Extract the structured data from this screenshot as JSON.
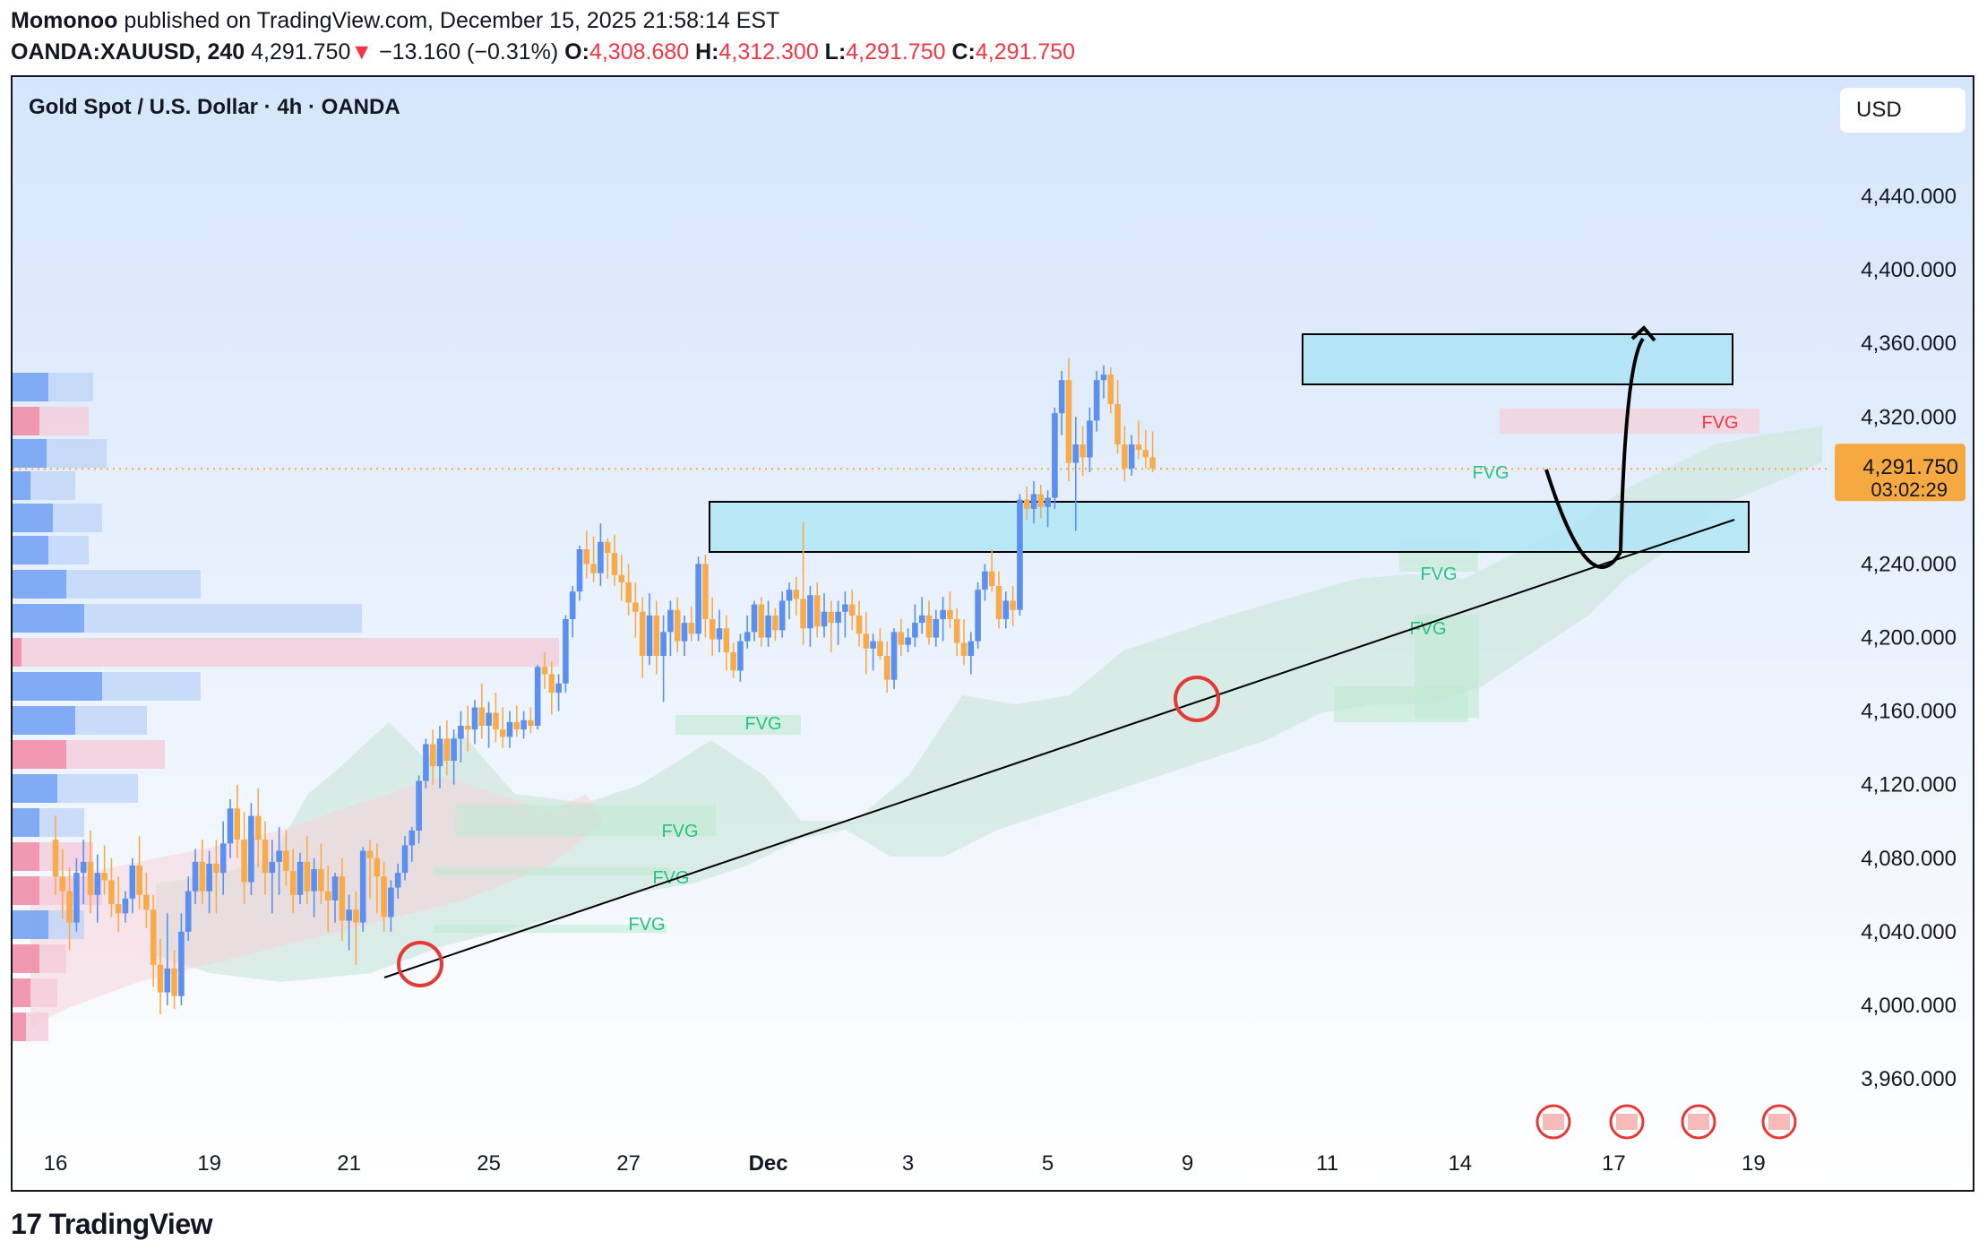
{
  "header": {
    "author": "Momonoo",
    "published_text": "published on TradingView.com, December 15, 2025 21:58:14 EST",
    "symbol": "OANDA:XAUUSD, 240",
    "last": "4,291.750",
    "arrow": "▼",
    "change": "−13.160 (−0.31%)",
    "o_label": "O:",
    "o_value": "4,308.680",
    "h_label": "H:",
    "h_value": "4,312.300",
    "l_label": "L:",
    "l_value": "4,291.750",
    "c_label": "C:",
    "c_value": "4,291.750"
  },
  "chart_title": "Gold Spot / U.S. Dollar · 4h · OANDA",
  "currency": "USD",
  "brand": "TradingView",
  "colors": {
    "up": "#5b8ff0",
    "down": "#f7ab4b",
    "fvg_green": "#26c281",
    "fvg_red": "#f23645",
    "zone": "#b3e5f5",
    "price_tag": "#f7a941"
  },
  "chart_data": {
    "type": "candlestick",
    "symbol": "XAUUSD",
    "timeframe": "4h",
    "ylim": [
      3940,
      4490
    ],
    "y_ticks": [
      "4,440.000",
      "4,400.000",
      "4,360.000",
      "4,320.000",
      "4,280.000",
      "4,240.000",
      "4,200.000",
      "4,160.000",
      "4,120.000",
      "4,080.000",
      "4,040.000",
      "4,000.000",
      "3,960.000"
    ],
    "y_tick_values": [
      4440,
      4400,
      4360,
      4320,
      4280,
      4240,
      4200,
      4160,
      4120,
      4080,
      4040,
      4000,
      3960
    ],
    "x_ticks": [
      "16",
      "19",
      "21",
      "25",
      "27",
      "Dec",
      "3",
      "5",
      "9",
      "11",
      "14",
      "17",
      "19"
    ],
    "x_tick_bar_index": [
      0,
      22,
      42,
      62,
      82,
      102,
      122,
      142,
      162,
      182,
      201,
      223,
      243
    ],
    "current_price": {
      "value": 4291.75,
      "label": "4,291.750",
      "countdown": "03:02:29"
    },
    "candles": [
      [
        4090,
        4103,
        4060,
        4070
      ],
      [
        4070,
        4085,
        4047,
        4062
      ],
      [
        4062,
        4075,
        4030,
        4045
      ],
      [
        4045,
        4080,
        4040,
        4072
      ],
      [
        4072,
        4090,
        4055,
        4078
      ],
      [
        4078,
        4095,
        4050,
        4060
      ],
      [
        4060,
        4082,
        4045,
        4072
      ],
      [
        4072,
        4087,
        4060,
        4068
      ],
      [
        4068,
        4080,
        4048,
        4055
      ],
      [
        4055,
        4070,
        4040,
        4050
      ],
      [
        4050,
        4062,
        4045,
        4058
      ],
      [
        4058,
        4080,
        4050,
        4076
      ],
      [
        4076,
        4092,
        4052,
        4060
      ],
      [
        4060,
        4072,
        4042,
        4052
      ],
      [
        4052,
        4060,
        4010,
        4022
      ],
      [
        4022,
        4036,
        3995,
        4007
      ],
      [
        4007,
        4050,
        4000,
        4020
      ],
      [
        4020,
        4030,
        3998,
        4005
      ],
      [
        4005,
        4050,
        4000,
        4040
      ],
      [
        4040,
        4070,
        4035,
        4062
      ],
      [
        4062,
        4085,
        4055,
        4078
      ],
      [
        4078,
        4090,
        4055,
        4062
      ],
      [
        4062,
        4084,
        4050,
        4077
      ],
      [
        4077,
        4090,
        4050,
        4072
      ],
      [
        4072,
        4100,
        4060,
        4088
      ],
      [
        4088,
        4112,
        4080,
        4107
      ],
      [
        4107,
        4120,
        4080,
        4090
      ],
      [
        4090,
        4105,
        4055,
        4067
      ],
      [
        4067,
        4110,
        4060,
        4103
      ],
      [
        4103,
        4118,
        4075,
        4090
      ],
      [
        4090,
        4100,
        4060,
        4072
      ],
      [
        4072,
        4090,
        4050,
        4078
      ],
      [
        4078,
        4097,
        4060,
        4084
      ],
      [
        4084,
        4095,
        4065,
        4073
      ],
      [
        4073,
        4085,
        4050,
        4060
      ],
      [
        4060,
        4083,
        4055,
        4078
      ],
      [
        4078,
        4092,
        4055,
        4062
      ],
      [
        4062,
        4080,
        4048,
        4074
      ],
      [
        4074,
        4088,
        4055,
        4062
      ],
      [
        4062,
        4076,
        4040,
        4057
      ],
      [
        4057,
        4072,
        4045,
        4070
      ],
      [
        4070,
        4080,
        4035,
        4046
      ],
      [
        4046,
        4060,
        4030,
        4052
      ],
      [
        4052,
        4062,
        4022,
        4045
      ],
      [
        4045,
        4086,
        4040,
        4084
      ],
      [
        4084,
        4090,
        4058,
        4080
      ],
      [
        4080,
        4088,
        4050,
        4070
      ],
      [
        4070,
        4078,
        4040,
        4048
      ],
      [
        4048,
        4068,
        4040,
        4064
      ],
      [
        4064,
        4077,
        4058,
        4072
      ],
      [
        4072,
        4092,
        4068,
        4087
      ],
      [
        4087,
        4097,
        4078,
        4095
      ],
      [
        4095,
        4125,
        4088,
        4122
      ],
      [
        4122,
        4145,
        4118,
        4142
      ],
      [
        4142,
        4150,
        4120,
        4130
      ],
      [
        4130,
        4152,
        4118,
        4145
      ],
      [
        4145,
        4155,
        4125,
        4133
      ],
      [
        4133,
        4150,
        4120,
        4145
      ],
      [
        4145,
        4160,
        4132,
        4152
      ],
      [
        4152,
        4163,
        4138,
        4150
      ],
      [
        4150,
        4166,
        4142,
        4162
      ],
      [
        4162,
        4175,
        4145,
        4152
      ],
      [
        4152,
        4165,
        4140,
        4159
      ],
      [
        4159,
        4170,
        4143,
        4150
      ],
      [
        4150,
        4162,
        4140,
        4146
      ],
      [
        4146,
        4160,
        4140,
        4154
      ],
      [
        4154,
        4163,
        4146,
        4150
      ],
      [
        4150,
        4160,
        4145,
        4155
      ],
      [
        4155,
        4162,
        4148,
        4152
      ],
      [
        4152,
        4185,
        4150,
        4184
      ],
      [
        4184,
        4192,
        4172,
        4180
      ],
      [
        4180,
        4187,
        4158,
        4170
      ],
      [
        4170,
        4180,
        4160,
        4175
      ],
      [
        4175,
        4212,
        4170,
        4210
      ],
      [
        4210,
        4228,
        4200,
        4225
      ],
      [
        4225,
        4250,
        4220,
        4248
      ],
      [
        4248,
        4258,
        4232,
        4240
      ],
      [
        4240,
        4255,
        4230,
        4235
      ],
      [
        4235,
        4262,
        4228,
        4252
      ],
      [
        4252,
        4254,
        4232,
        4246
      ],
      [
        4246,
        4256,
        4228,
        4234
      ],
      [
        4234,
        4245,
        4220,
        4230
      ],
      [
        4230,
        4240,
        4212,
        4219
      ],
      [
        4219,
        4230,
        4200,
        4214
      ],
      [
        4214,
        4222,
        4178,
        4190
      ],
      [
        4190,
        4224,
        4185,
        4212
      ],
      [
        4212,
        4220,
        4180,
        4190
      ],
      [
        4190,
        4212,
        4165,
        4203
      ],
      [
        4203,
        4220,
        4190,
        4215
      ],
      [
        4215,
        4222,
        4192,
        4198
      ],
      [
        4198,
        4212,
        4190,
        4208
      ],
      [
        4208,
        4217,
        4198,
        4202
      ],
      [
        4202,
        4244,
        4198,
        4240
      ],
      [
        4240,
        4245,
        4200,
        4210
      ],
      [
        4210,
        4222,
        4190,
        4199
      ],
      [
        4199,
        4215,
        4192,
        4205
      ],
      [
        4205,
        4212,
        4182,
        4192
      ],
      [
        4192,
        4197,
        4178,
        4182
      ],
      [
        4182,
        4202,
        4176,
        4198
      ],
      [
        4198,
        4212,
        4194,
        4203
      ],
      [
        4203,
        4220,
        4198,
        4218
      ],
      [
        4218,
        4222,
        4195,
        4200
      ],
      [
        4200,
        4220,
        4195,
        4212
      ],
      [
        4212,
        4216,
        4198,
        4204
      ],
      [
        4204,
        4225,
        4200,
        4220
      ],
      [
        4220,
        4230,
        4210,
        4226
      ],
      [
        4226,
        4233,
        4212,
        4221
      ],
      [
        4221,
        4263,
        4196,
        4205
      ],
      [
        4205,
        4228,
        4195,
        4223
      ],
      [
        4223,
        4230,
        4200,
        4206
      ],
      [
        4206,
        4224,
        4200,
        4214
      ],
      [
        4214,
        4220,
        4192,
        4208
      ],
      [
        4208,
        4220,
        4196,
        4214
      ],
      [
        4214,
        4225,
        4200,
        4218
      ],
      [
        4218,
        4226,
        4204,
        4212
      ],
      [
        4212,
        4220,
        4195,
        4202
      ],
      [
        4202,
        4214,
        4180,
        4194
      ],
      [
        4194,
        4202,
        4182,
        4198
      ],
      [
        4198,
        4205,
        4188,
        4190
      ],
      [
        4190,
        4198,
        4170,
        4177
      ],
      [
        4177,
        4205,
        4172,
        4203
      ],
      [
        4203,
        4210,
        4190,
        4196
      ],
      [
        4196,
        4205,
        4192,
        4200
      ],
      [
        4200,
        4218,
        4195,
        4208
      ],
      [
        4208,
        4222,
        4202,
        4212
      ],
      [
        4212,
        4220,
        4196,
        4200
      ],
      [
        4200,
        4215,
        4195,
        4210
      ],
      [
        4210,
        4222,
        4198,
        4215
      ],
      [
        4215,
        4225,
        4205,
        4210
      ],
      [
        4210,
        4216,
        4190,
        4197
      ],
      [
        4197,
        4210,
        4185,
        4190
      ],
      [
        4190,
        4203,
        4180,
        4198
      ],
      [
        4198,
        4230,
        4194,
        4226
      ],
      [
        4226,
        4240,
        4220,
        4236
      ],
      [
        4236,
        4248,
        4225,
        4228
      ],
      [
        4228,
        4236,
        4205,
        4210
      ],
      [
        4210,
        4225,
        4205,
        4220
      ],
      [
        4220,
        4228,
        4206,
        4215
      ],
      [
        4215,
        4278,
        4212,
        4275
      ],
      [
        4275,
        4282,
        4264,
        4270
      ],
      [
        4270,
        4285,
        4262,
        4278
      ],
      [
        4278,
        4283,
        4265,
        4271
      ],
      [
        4271,
        4280,
        4260,
        4276
      ],
      [
        4276,
        4325,
        4270,
        4322
      ],
      [
        4322,
        4345,
        4310,
        4340
      ],
      [
        4340,
        4352,
        4285,
        4295
      ],
      [
        4295,
        4320,
        4258,
        4305
      ],
      [
        4305,
        4315,
        4288,
        4298
      ],
      [
        4298,
        4325,
        4290,
        4318
      ],
      [
        4318,
        4345,
        4312,
        4340
      ],
      [
        4340,
        4348,
        4330,
        4343
      ],
      [
        4343,
        4347,
        4322,
        4327
      ],
      [
        4327,
        4340,
        4300,
        4305
      ],
      [
        4305,
        4315,
        4285,
        4292
      ],
      [
        4292,
        4310,
        4288,
        4305
      ],
      [
        4305,
        4318,
        4297,
        4302
      ],
      [
        4302,
        4313,
        4292,
        4298
      ],
      [
        4298,
        4312,
        4290,
        4292
      ]
    ],
    "annotations": [
      {
        "type": "zone",
        "label": "upper supply box",
        "from": 4345,
        "to": 4372
      },
      {
        "type": "zone",
        "label": "breakout retest box",
        "from": 4257,
        "to": 4284
      },
      {
        "type": "trendline",
        "label": "rising support"
      },
      {
        "type": "arrow",
        "label": "projected dip then rally"
      },
      {
        "type": "marker",
        "label": "circle at swing low"
      },
      {
        "type": "marker",
        "label": "circle at trendline touch"
      }
    ],
    "fvg_labels": [
      "FVG",
      "FVG",
      "FVG",
      "FVG",
      "FVG",
      "FVG",
      "FVG",
      "FVG"
    ],
    "volume_profile": true,
    "ichimoku_cloud": true
  }
}
